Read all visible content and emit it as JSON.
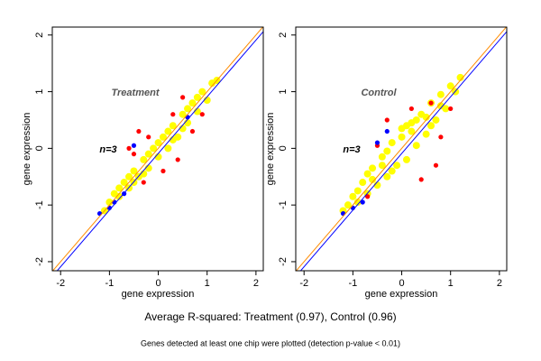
{
  "chart_data": [
    {
      "type": "scatter",
      "annotations": [
        "Treatment",
        "n=3"
      ],
      "xlabel": "gene expression",
      "ylabel": "gene expression",
      "xlim": [
        -2.17,
        2.15
      ],
      "ylim": [
        -2.16,
        2.14
      ],
      "xticks": [
        -2,
        -1,
        0,
        1,
        2
      ],
      "yticks": [
        -2,
        -1,
        0,
        1,
        2
      ],
      "series": [
        {
          "color": "#ffff00",
          "x": [
            -1.1,
            -1.0,
            -0.9,
            -0.8,
            -0.7,
            -0.6,
            -0.5,
            -0.4,
            -0.3,
            -0.2,
            -0.1,
            0.0,
            0.1,
            0.2,
            0.3,
            0.4,
            0.5,
            0.6,
            0.7,
            0.8,
            0.9,
            1.0,
            1.1,
            1.2,
            -0.5,
            -0.2,
            0.2,
            0.5,
            -0.8,
            0.8,
            0.0,
            0.3,
            -0.3,
            0.6,
            -0.6
          ],
          "y": [
            -1.1,
            -0.95,
            -0.8,
            -0.85,
            -0.6,
            -0.7,
            -0.4,
            -0.5,
            -0.2,
            -0.35,
            0.0,
            -0.15,
            0.2,
            0.0,
            0.4,
            0.2,
            0.6,
            0.45,
            0.8,
            0.65,
            1.0,
            0.85,
            1.15,
            1.2,
            -0.6,
            -0.1,
            0.3,
            0.35,
            -0.7,
            0.9,
            0.1,
            0.15,
            -0.45,
            0.7,
            -0.5
          ]
        },
        {
          "color": "#ff0000",
          "x": [
            -0.6,
            -0.4,
            -0.2,
            0.3,
            0.5,
            0.4,
            0.1,
            0.7,
            -0.3,
            0.9,
            -0.5
          ],
          "y": [
            0.0,
            0.3,
            0.2,
            0.6,
            0.9,
            -0.2,
            -0.4,
            0.3,
            -0.6,
            0.6,
            -0.1
          ]
        },
        {
          "color": "#0000ff",
          "x": [
            -1.2,
            -1.0,
            -0.9,
            -0.7,
            -0.5,
            0.6
          ],
          "y": [
            -1.15,
            -1.05,
            -0.95,
            -0.8,
            0.05,
            0.55
          ]
        }
      ],
      "lines": [
        {
          "color": "#ff8c00",
          "x": [
            -2.17,
            2.15
          ],
          "y": [
            -2.17,
            2.15
          ]
        },
        {
          "color": "#0000ff",
          "x": [
            -2.17,
            2.15
          ],
          "y": [
            -2.26,
            2.06
          ]
        }
      ]
    },
    {
      "type": "scatter",
      "annotations": [
        "Control",
        "n=3"
      ],
      "xlabel": "gene expression",
      "ylabel": "gene expression",
      "xlim": [
        -2.17,
        2.15
      ],
      "ylim": [
        -2.16,
        2.14
      ],
      "xticks": [
        -2,
        -1,
        0,
        1,
        2
      ],
      "yticks": [
        -2,
        -1,
        0,
        1,
        2
      ],
      "series": [
        {
          "color": "#ffff00",
          "x": [
            -1.2,
            -1.1,
            -1.0,
            -0.9,
            -0.8,
            -0.7,
            -0.6,
            -0.5,
            -0.4,
            -0.3,
            -0.2,
            -0.1,
            0.0,
            0.1,
            0.2,
            0.3,
            0.4,
            0.5,
            0.6,
            0.7,
            0.8,
            0.9,
            1.0,
            1.1,
            1.2,
            -0.6,
            -0.3,
            0.2,
            0.5,
            -0.9,
            0.8,
            0.0,
            0.3,
            -0.4,
            0.6,
            -0.7,
            0.1,
            -0.2
          ],
          "y": [
            -1.1,
            -1.0,
            -0.85,
            -0.95,
            -0.6,
            -0.8,
            -0.35,
            -0.65,
            -0.15,
            -0.5,
            0.1,
            -0.3,
            0.2,
            -0.2,
            0.45,
            0.05,
            0.6,
            0.25,
            0.8,
            0.5,
            0.95,
            0.7,
            1.1,
            1.0,
            1.25,
            -0.55,
            -0.05,
            0.3,
            0.55,
            -0.75,
            0.75,
            0.35,
            0.5,
            -0.3,
            0.4,
            -0.45,
            0.4,
            -0.4
          ]
        },
        {
          "color": "#ff0000",
          "x": [
            -0.3,
            -0.5,
            0.2,
            0.6,
            0.8,
            0.7,
            -0.7,
            0.4,
            1.0
          ],
          "y": [
            0.5,
            0.05,
            0.7,
            0.8,
            0.2,
            -0.3,
            -0.85,
            -0.55,
            0.7
          ]
        },
        {
          "color": "#0000ff",
          "x": [
            -0.5,
            -0.3,
            -1.0,
            -0.8,
            -1.2
          ],
          "y": [
            0.1,
            0.3,
            -1.05,
            -0.95,
            -1.15
          ]
        }
      ],
      "lines": [
        {
          "color": "#ff8c00",
          "x": [
            -2.17,
            2.15
          ],
          "y": [
            -2.17,
            2.15
          ]
        },
        {
          "color": "#0000ff",
          "x": [
            -2.17,
            2.15
          ],
          "y": [
            -2.26,
            2.06
          ]
        }
      ]
    }
  ],
  "captions": {
    "summary": "Average R-squared: Treatment (0.97), Control (0.96)",
    "note": "Genes detected at least one chip were plotted (detection p-value < 0.01)"
  }
}
